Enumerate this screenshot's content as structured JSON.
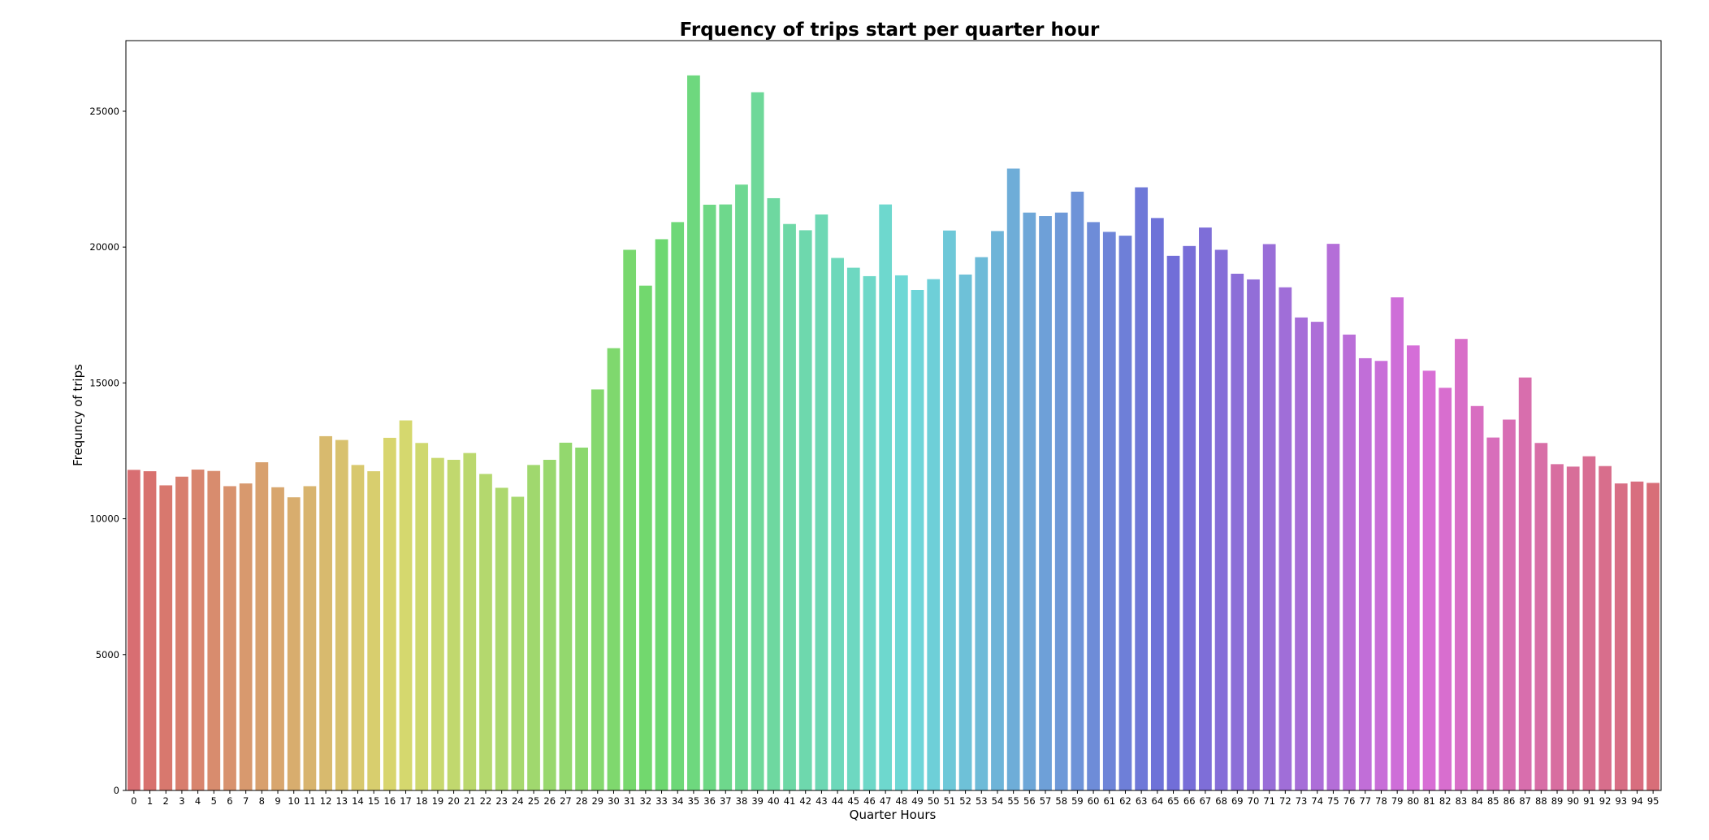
{
  "chart_data": {
    "type": "bar",
    "title": "Frquency of trips start per quarter hour",
    "xlabel": "Quarter Hours",
    "ylabel": "Frequncy of trips",
    "ylim": [
      0,
      27600
    ],
    "yticks": [
      0,
      5000,
      10000,
      15000,
      20000,
      25000
    ],
    "grid": false,
    "categories": [
      "0",
      "1",
      "2",
      "3",
      "4",
      "5",
      "6",
      "7",
      "8",
      "9",
      "10",
      "11",
      "12",
      "13",
      "14",
      "15",
      "16",
      "17",
      "18",
      "19",
      "20",
      "21",
      "22",
      "23",
      "24",
      "25",
      "26",
      "27",
      "28",
      "29",
      "30",
      "31",
      "32",
      "33",
      "34",
      "35",
      "36",
      "37",
      "38",
      "39",
      "40",
      "41",
      "42",
      "43",
      "44",
      "45",
      "46",
      "47",
      "48",
      "49",
      "50",
      "51",
      "52",
      "53",
      "54",
      "55",
      "56",
      "57",
      "58",
      "59",
      "60",
      "61",
      "62",
      "63",
      "64",
      "65",
      "66",
      "67",
      "68",
      "69",
      "70",
      "71",
      "72",
      "73",
      "74",
      "75",
      "76",
      "77",
      "78",
      "79",
      "80",
      "81",
      "82",
      "83",
      "84",
      "85",
      "86",
      "87",
      "88",
      "89",
      "90",
      "91",
      "92",
      "93",
      "94",
      "95"
    ],
    "values": [
      11800,
      11750,
      11230,
      11550,
      11810,
      11760,
      11200,
      11300,
      12080,
      11160,
      10790,
      11200,
      13040,
      12900,
      11980,
      11750,
      12980,
      13620,
      12790,
      12240,
      12170,
      12420,
      11650,
      11140,
      10810,
      11980,
      12170,
      12800,
      12620,
      14760,
      16280,
      19900,
      18580,
      20290,
      20920,
      26320,
      21560,
      21570,
      22300,
      25700,
      21800,
      20850,
      20620,
      21200,
      19600,
      19240,
      18930,
      21570,
      18960,
      18420,
      18820,
      20610,
      18990,
      19630,
      20590,
      22890,
      21270,
      21140,
      21270,
      22040,
      20920,
      20560,
      20420,
      22200,
      21070,
      19680,
      20040,
      20720,
      19900,
      19020,
      18810,
      20110,
      18520,
      17410,
      17250,
      20120,
      16780,
      15910,
      15810,
      18150,
      16380,
      15450,
      14820,
      16620,
      14150,
      12990,
      13650,
      15200,
      12790,
      12010,
      11920,
      12300,
      11940,
      11300,
      11370,
      11320
    ]
  }
}
